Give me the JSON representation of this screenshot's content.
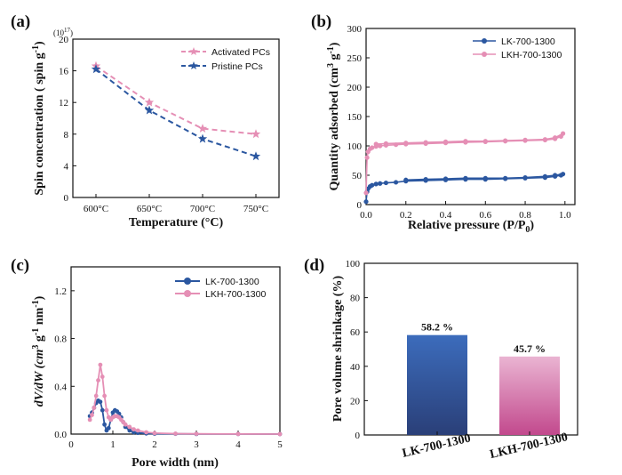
{
  "chart_data": [
    {
      "panel": "(a)",
      "type": "line",
      "categories": [
        "600°C",
        "650°C",
        "700°C",
        "750°C"
      ],
      "series": [
        {
          "name": "Activated PCs",
          "color": "#e58fb5",
          "values": [
            16.6,
            12.0,
            8.7,
            8.0
          ]
        },
        {
          "name": "Pristine PCs",
          "color": "#2b57a0",
          "values": [
            16.2,
            11.0,
            7.4,
            5.2
          ]
        }
      ],
      "xlabel": "Temperature (°C)",
      "ylabel": "Spin concentration ( spin g",
      "ylabel_sup": "-1",
      "ylabel_end": ")",
      "multiplier": "(10",
      "multiplier_sup": "17",
      "multiplier_end": ")",
      "yticks": [
        "0",
        "4",
        "8",
        "12",
        "16",
        "20"
      ],
      "ylim": [
        0,
        20
      ],
      "legend": "top-right"
    },
    {
      "panel": "(b)",
      "type": "line",
      "series": [
        {
          "name": "LK-700-1300",
          "color": "#2b57a0",
          "x": [
            0.0,
            0.005,
            0.01,
            0.02,
            0.03,
            0.05,
            0.07,
            0.1,
            0.15,
            0.2,
            0.3,
            0.4,
            0.5,
            0.6,
            0.7,
            0.8,
            0.9,
            0.95,
            0.98,
            0.99,
            0.95,
            0.9,
            0.8,
            0.7,
            0.6,
            0.5,
            0.4,
            0.3,
            0.2
          ],
          "y": [
            5,
            22,
            27,
            31,
            33,
            35,
            36,
            37,
            38,
            40,
            41,
            42,
            43,
            43,
            44,
            45,
            46,
            48,
            50,
            52,
            50,
            48,
            46,
            45,
            45,
            45,
            44,
            43,
            42
          ]
        },
        {
          "name": "LKH-700-1300",
          "color": "#e58fb5",
          "x": [
            0.0,
            0.005,
            0.01,
            0.02,
            0.03,
            0.05,
            0.07,
            0.1,
            0.15,
            0.2,
            0.3,
            0.4,
            0.5,
            0.6,
            0.7,
            0.8,
            0.9,
            0.95,
            0.98,
            0.99,
            0.95,
            0.9,
            0.8,
            0.7,
            0.6,
            0.5,
            0.4,
            0.3,
            0.2,
            0.1,
            0.05
          ],
          "y": [
            20,
            80,
            90,
            95,
            97,
            99,
            100,
            101,
            102,
            103,
            104,
            105,
            106,
            107,
            108,
            109,
            110,
            112,
            116,
            121,
            114,
            111,
            110,
            109,
            108,
            108,
            107,
            106,
            105,
            104,
            103
          ]
        }
      ],
      "xlabel": "Relative pressure (P/P",
      "xlabel_sub": "0",
      "xlabel_end": ")",
      "ylabel": "Quantity adsorbed (cm",
      "ylabel_sup": "3",
      "ylabel_mid": " g",
      "ylabel_sup2": "-1",
      "ylabel_end": ")",
      "xticks": [
        "0.0",
        "0.2",
        "0.4",
        "0.6",
        "0.8",
        "1.0"
      ],
      "yticks": [
        "0",
        "50",
        "100",
        "150",
        "200",
        "250",
        "300"
      ],
      "xlim": [
        0,
        1.05
      ],
      "ylim": [
        0,
        300
      ],
      "legend": "top-right"
    },
    {
      "panel": "(c)",
      "type": "line",
      "series": [
        {
          "name": "LK-700-1300",
          "color": "#2b57a0",
          "x": [
            0.45,
            0.5,
            0.55,
            0.6,
            0.65,
            0.7,
            0.75,
            0.8,
            0.85,
            0.9,
            0.95,
            1.0,
            1.05,
            1.1,
            1.15,
            1.2,
            1.25,
            1.3,
            1.4,
            1.5,
            1.6,
            1.8,
            2.0,
            2.5,
            3.0,
            4.0,
            5.0
          ],
          "y": [
            0.15,
            0.18,
            0.22,
            0.26,
            0.28,
            0.27,
            0.2,
            0.08,
            0.03,
            0.05,
            0.12,
            0.18,
            0.2,
            0.19,
            0.17,
            0.14,
            0.1,
            0.06,
            0.03,
            0.015,
            0.01,
            0.005,
            0.003,
            0.002,
            0.001,
            0.001,
            0.0
          ]
        },
        {
          "name": "LKH-700-1300",
          "color": "#e58fb5",
          "x": [
            0.45,
            0.5,
            0.55,
            0.6,
            0.65,
            0.7,
            0.75,
            0.8,
            0.85,
            0.9,
            0.95,
            1.0,
            1.05,
            1.1,
            1.15,
            1.2,
            1.25,
            1.3,
            1.4,
            1.5,
            1.6,
            1.8,
            2.0,
            2.5,
            3.0,
            4.0,
            5.0
          ],
          "y": [
            0.12,
            0.16,
            0.22,
            0.32,
            0.45,
            0.58,
            0.48,
            0.32,
            0.2,
            0.14,
            0.12,
            0.14,
            0.15,
            0.15,
            0.14,
            0.12,
            0.1,
            0.08,
            0.06,
            0.04,
            0.03,
            0.015,
            0.008,
            0.004,
            0.002,
            0.001,
            0.0
          ]
        }
      ],
      "xlabel": "Pore width (nm)",
      "ylabel": "dV/dW (cm",
      "ylabel_sup": "3",
      "ylabel_mid": " g",
      "ylabel_sup2": "-1",
      "ylabel_mid2": " nm",
      "ylabel_sup3": "-1",
      "ylabel_end": ")",
      "xticks": [
        "0",
        "1",
        "2",
        "3",
        "4",
        "5"
      ],
      "yticks": [
        "0.0",
        "0.4",
        "0.8",
        "1.2"
      ],
      "xlim": [
        0,
        5
      ],
      "ylim": [
        0,
        1.4
      ],
      "legend": "top-right"
    },
    {
      "panel": "(d)",
      "type": "bar",
      "categories": [
        "LK-700-1300",
        "LKH-700-1300"
      ],
      "values": [
        58.2,
        45.7
      ],
      "data_labels": [
        "58.2 %",
        "45.7 %"
      ],
      "colors": [
        {
          "top": "#3c6cbc",
          "bottom": "#2a3f78"
        },
        {
          "top": "#eab4d2",
          "bottom": "#c2498d"
        }
      ],
      "ylabel": "Pore volume shrinkage (%)",
      "yticks": [
        "0",
        "20",
        "40",
        "60",
        "80",
        "100"
      ],
      "ylim": [
        0,
        100
      ]
    }
  ]
}
